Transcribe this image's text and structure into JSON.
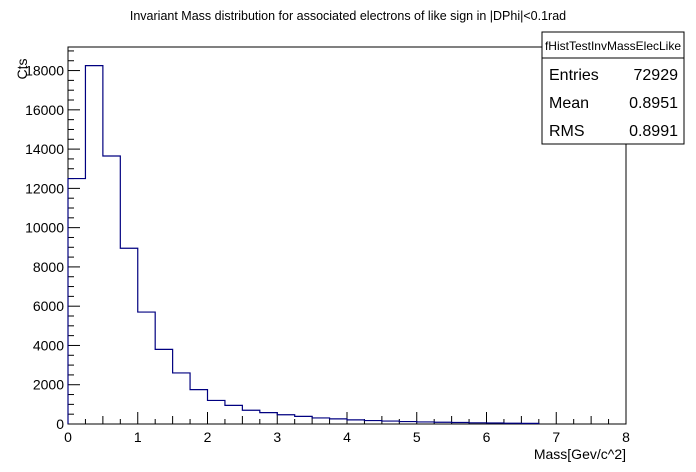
{
  "chart_data": {
    "type": "histogram",
    "title": "Invariant Mass distribution for associated electrons of like sign in |DPhi|<0.1rad",
    "xlabel": "Mass[Gev/c^2]",
    "ylabel": "Cts",
    "xlim": [
      0,
      8
    ],
    "ylim": [
      0,
      18000
    ],
    "bin_width": 0.25,
    "x_ticks": [
      0,
      1,
      2,
      3,
      4,
      5,
      6,
      7,
      8
    ],
    "y_ticks": [
      0,
      2000,
      4000,
      6000,
      8000,
      10000,
      12000,
      14000,
      16000,
      18000
    ],
    "bins": [
      {
        "x0": 0.0,
        "value": 12500
      },
      {
        "x0": 0.25,
        "value": 18250
      },
      {
        "x0": 0.5,
        "value": 13650
      },
      {
        "x0": 0.75,
        "value": 8950
      },
      {
        "x0": 1.0,
        "value": 5700
      },
      {
        "x0": 1.25,
        "value": 3800
      },
      {
        "x0": 1.5,
        "value": 2600
      },
      {
        "x0": 1.75,
        "value": 1750
      },
      {
        "x0": 2.0,
        "value": 1200
      },
      {
        "x0": 2.25,
        "value": 950
      },
      {
        "x0": 2.5,
        "value": 700
      },
      {
        "x0": 2.75,
        "value": 580
      },
      {
        "x0": 3.0,
        "value": 470
      },
      {
        "x0": 3.25,
        "value": 390
      },
      {
        "x0": 3.5,
        "value": 310
      },
      {
        "x0": 3.75,
        "value": 260
      },
      {
        "x0": 4.0,
        "value": 210
      },
      {
        "x0": 4.25,
        "value": 175
      },
      {
        "x0": 4.5,
        "value": 150
      },
      {
        "x0": 4.75,
        "value": 125
      },
      {
        "x0": 5.0,
        "value": 105
      },
      {
        "x0": 5.25,
        "value": 90
      },
      {
        "x0": 5.5,
        "value": 75
      },
      {
        "x0": 5.75,
        "value": 60
      },
      {
        "x0": 6.0,
        "value": 50
      },
      {
        "x0": 6.25,
        "value": 40
      },
      {
        "x0": 6.5,
        "value": 30
      }
    ],
    "line_color": "#000080",
    "stats_box": {
      "name": "fHistTestInvMassElecLike",
      "rows": [
        {
          "label": "Entries",
          "value": "72929"
        },
        {
          "label": "Mean",
          "value": "0.8951"
        },
        {
          "label": "RMS",
          "value": "0.8991"
        }
      ]
    }
  }
}
